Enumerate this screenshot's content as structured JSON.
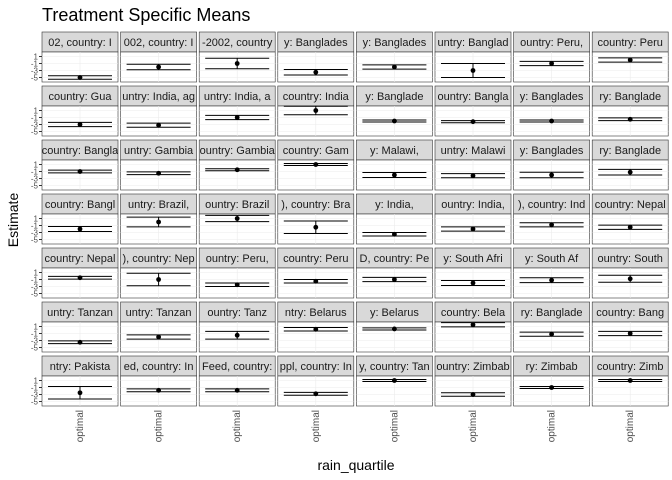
{
  "chart_data": {
    "type": "errorbar",
    "title": "Treatment Specific Means",
    "x_label": "rain_quartile",
    "y_label": "Estimate",
    "categories": [
      "optimal"
    ],
    "ylim": [
      -6,
      2
    ],
    "yticks": [
      1,
      -1,
      -3,
      -5
    ],
    "grid": true,
    "color": "#000000",
    "panels": [
      {
        "strip": "02, country: I",
        "values": [
          -5
        ],
        "errors": [
          0.5
        ]
      },
      {
        "strip": "002, country: I",
        "values": [
          -2
        ],
        "errors": [
          0.8
        ]
      },
      {
        "strip": "-2002, country",
        "values": [
          -1
        ],
        "errors": [
          1.5
        ]
      },
      {
        "strip": "y: Banglades",
        "values": [
          -3.5
        ],
        "errors": [
          0.8
        ]
      },
      {
        "strip": "y: Banglades",
        "values": [
          -2
        ],
        "errors": [
          0.6
        ]
      },
      {
        "strip": "untry: Banglad",
        "values": [
          -3
        ],
        "errors": [
          2
        ]
      },
      {
        "strip": "ountry: Peru,",
        "values": [
          -1
        ],
        "errors": [
          0.6
        ]
      },
      {
        "strip": "country: Peru",
        "values": [
          0
        ],
        "errors": [
          0.6
        ]
      },
      {
        "strip": "country: Gua",
        "values": [
          -3
        ],
        "errors": [
          0.6
        ]
      },
      {
        "strip": "untry: India, ag",
        "values": [
          -3.2
        ],
        "errors": [
          0.6
        ]
      },
      {
        "strip": "untry: India, a",
        "values": [
          -1
        ],
        "errors": [
          0.6
        ]
      },
      {
        "strip": "country: India",
        "values": [
          1
        ],
        "errors": [
          1.2
        ]
      },
      {
        "strip": "y: Banglade",
        "values": [
          -2
        ],
        "errors": [
          0.3
        ]
      },
      {
        "strip": "ountry: Bangla",
        "values": [
          -2.2
        ],
        "errors": [
          0.3
        ]
      },
      {
        "strip": "y: Banglades",
        "values": [
          -2
        ],
        "errors": [
          0.3
        ]
      },
      {
        "strip": "ry: Banglade",
        "values": [
          -1.5
        ],
        "errors": [
          0.4
        ]
      },
      {
        "strip": "country: Bangla",
        "values": [
          -1
        ],
        "errors": [
          0.4
        ]
      },
      {
        "strip": "untry: Gambia",
        "values": [
          -1.5
        ],
        "errors": [
          0.4
        ]
      },
      {
        "strip": "ountry: Gambia",
        "values": [
          -0.5
        ],
        "errors": [
          0.3
        ]
      },
      {
        "strip": "country: Gam",
        "values": [
          1
        ],
        "errors": [
          0.3
        ]
      },
      {
        "strip": "y: Malawi,",
        "values": [
          -2
        ],
        "errors": [
          0.7
        ]
      },
      {
        "strip": "untry: Malawi",
        "values": [
          -2.2
        ],
        "errors": [
          0.6
        ]
      },
      {
        "strip": "y: Banglades",
        "values": [
          -2
        ],
        "errors": [
          0.8
        ]
      },
      {
        "strip": "ry: Banglade",
        "values": [
          -1.2
        ],
        "errors": [
          0.8
        ]
      },
      {
        "strip": "country: Bangl",
        "values": [
          -2
        ],
        "errors": [
          0.7
        ]
      },
      {
        "strip": "untry: Brazil,",
        "values": [
          0
        ],
        "errors": [
          1.4
        ]
      },
      {
        "strip": "ountry: Brazil",
        "values": [
          1
        ],
        "errors": [
          0.9
        ]
      },
      {
        "strip": "), country: Bra",
        "values": [
          -1.5
        ],
        "errors": [
          1.8
        ]
      },
      {
        "strip": "y: India,",
        "values": [
          -3.5
        ],
        "errors": [
          0.5
        ]
      },
      {
        "strip": "ountry: India,",
        "values": [
          -2
        ],
        "errors": [
          0.6
        ]
      },
      {
        "strip": "), country: Ind",
        "values": [
          -0.8
        ],
        "errors": [
          0.6
        ]
      },
      {
        "strip": "country: Nepal",
        "values": [
          -1.5
        ],
        "errors": [
          0.6
        ]
      },
      {
        "strip": "country: Nepal",
        "values": [
          -0.5
        ],
        "errors": [
          0.4
        ]
      },
      {
        "strip": "), country: Nep",
        "values": [
          -1
        ],
        "errors": [
          1.8
        ]
      },
      {
        "strip": "ountry: Peru,",
        "values": [
          -2.5
        ],
        "errors": [
          0.5
        ]
      },
      {
        "strip": "country: Peru",
        "values": [
          -1.5
        ],
        "errors": [
          0.5
        ]
      },
      {
        "strip": "D, country: Pe",
        "values": [
          -1
        ],
        "errors": [
          0.6
        ]
      },
      {
        "strip": "y: South Afri",
        "values": [
          -2
        ],
        "errors": [
          0.7
        ]
      },
      {
        "strip": "y: South Af",
        "values": [
          -1.2
        ],
        "errors": [
          0.7
        ]
      },
      {
        "strip": "ountry: South",
        "values": [
          -0.8
        ],
        "errors": [
          1
        ]
      },
      {
        "strip": "untry: Tanzan",
        "values": [
          -3.5
        ],
        "errors": [
          0.4
        ]
      },
      {
        "strip": "untry: Tanzan",
        "values": [
          -2
        ],
        "errors": [
          0.6
        ]
      },
      {
        "strip": "ountry: Tanz",
        "values": [
          -1.5
        ],
        "errors": [
          1.1
        ]
      },
      {
        "strip": "ntry: Belarus",
        "values": [
          0.2
        ],
        "errors": [
          0.5
        ]
      },
      {
        "strip": "y: Belarus",
        "values": [
          0.3
        ],
        "errors": [
          0.3
        ]
      },
      {
        "strip": "country: Bela",
        "values": [
          1.5
        ],
        "errors": [
          0.6
        ]
      },
      {
        "strip": "ry: Banglade",
        "values": [
          -1.2
        ],
        "errors": [
          0.6
        ]
      },
      {
        "strip": "country: Bang",
        "values": [
          -1
        ],
        "errors": [
          0.6
        ]
      },
      {
        "strip": "ntry: Pakista",
        "values": [
          -2.5
        ],
        "errors": [
          1.8
        ]
      },
      {
        "strip": "ed, country: In",
        "values": [
          -1.8
        ],
        "errors": [
          0.4
        ]
      },
      {
        "strip": "Feed, country:",
        "values": [
          -1.8
        ],
        "errors": [
          0.4
        ]
      },
      {
        "strip": "ppl, country: In",
        "values": [
          -2.8
        ],
        "errors": [
          0.4
        ]
      },
      {
        "strip": "y, country: Tan",
        "values": [
          1
        ],
        "errors": [
          0.3
        ]
      },
      {
        "strip": "ountry: Zimbab",
        "values": [
          -3
        ],
        "errors": [
          0.5
        ]
      },
      {
        "strip": "ry: Zimbab",
        "values": [
          -1
        ],
        "errors": [
          0.3
        ]
      },
      {
        "strip": "country: Zimb",
        "values": [
          1
        ],
        "errors": [
          0.3
        ]
      }
    ]
  }
}
